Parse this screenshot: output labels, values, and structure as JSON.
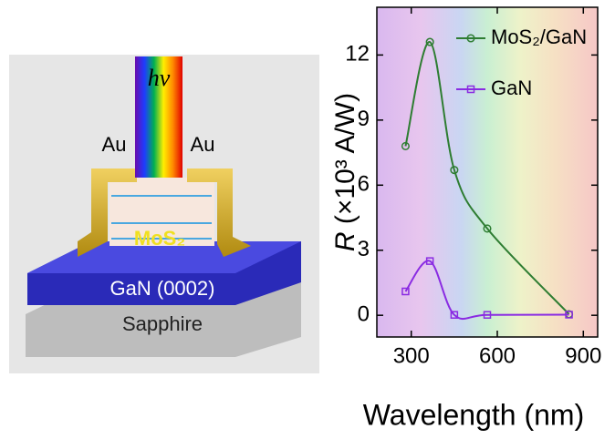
{
  "schematic": {
    "beam_label": "hν",
    "left_contact": "Au",
    "right_contact": "Au",
    "film": "MoS₂",
    "layer": "GaN (0002)",
    "substrate": "Sapphire"
  },
  "chart_data": {
    "type": "line",
    "x_label": "Wavelength (nm)",
    "y_label_symbol": "R",
    "y_label_unit": "(×10³ A/W)",
    "xlim": [
      180,
      950
    ],
    "xticks": [
      300,
      600,
      900
    ],
    "ylim": [
      -1,
      14.2
    ],
    "yticks": [
      0,
      3,
      6,
      9,
      12
    ],
    "series": [
      {
        "name": "MoS₂/GaN",
        "color": "#2e7d32",
        "marker": "circle",
        "x": [
          280,
          365,
          450,
          565,
          850
        ],
        "values": [
          7.8,
          12.6,
          6.7,
          4.0,
          0.05
        ]
      },
      {
        "name": "GaN",
        "color": "#8a2be2",
        "marker": "square",
        "x": [
          280,
          365,
          450,
          565,
          850
        ],
        "values": [
          1.1,
          2.5,
          0.02,
          0.02,
          0.03
        ]
      }
    ]
  }
}
